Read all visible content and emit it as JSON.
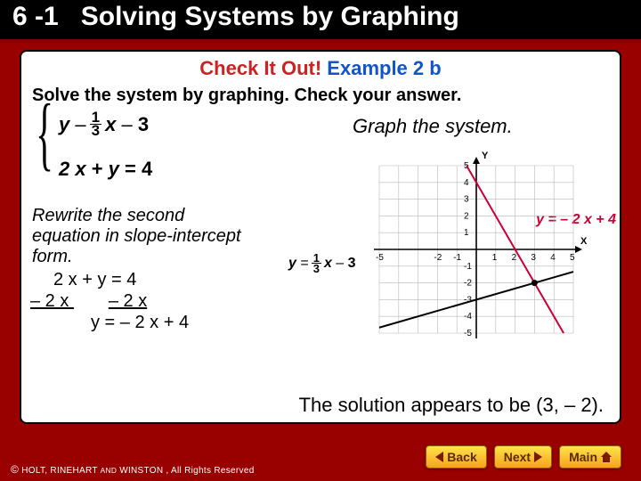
{
  "header": {
    "section": "6 -1",
    "title": "Solving Systems by Graphing"
  },
  "content": {
    "check_label": "Check It Out!",
    "example_label": " Example 2 b",
    "prompt": "Solve the system by graphing. Check your answer.",
    "graph_instruction": "Graph the system.",
    "system": {
      "eq1_y": "y",
      "eq1_minus": "–",
      "eq1_num": "1",
      "eq1_den": "3",
      "eq1_x": "x",
      "eq1_minus2": "–",
      "eq1_c": "3",
      "eq2": "2 x + y = 4"
    },
    "rewrite": {
      "line1": "Rewrite the second",
      "line2": "equation in slope-intercept",
      "line3": "form.",
      "w1": "2 x + y = 4",
      "w2a": "– 2 x ",
      "w2b": "– 2 x",
      "w3": "y = – 2 x + 4"
    },
    "eq_labels": {
      "left_y": "y",
      "left_eq": "=",
      "left_num": "1",
      "left_den": "3",
      "left_x": "x",
      "left_m": "–",
      "left_c": "3",
      "right": "y = – 2 x  + 4"
    },
    "solution": "The solution appears to be (3, – 2).",
    "chart": {
      "xlim": [
        -5,
        5
      ],
      "ylim": [
        -5,
        5
      ],
      "xticks": [
        -5,
        -2,
        -1,
        1,
        2,
        3,
        4,
        5
      ],
      "xlabels": [
        "-5",
        "-2",
        "-1",
        "1",
        "2",
        "3",
        "4",
        "5"
      ],
      "yticks": [
        -5,
        -4,
        -3,
        -2,
        -1,
        1,
        2,
        3,
        4,
        5
      ],
      "ylabels": [
        "-5",
        "-4",
        "-3",
        "-2",
        "-1",
        "1",
        "2",
        "3",
        "4",
        "5"
      ],
      "grid_color": "#b8b8b8",
      "axis_color": "#000000",
      "bg": "#ffffff",
      "lines": [
        {
          "pts": [
            [
              -5,
              -4.667
            ],
            [
              5,
              -1.333
            ]
          ],
          "color": "#000000",
          "width": 2
        },
        {
          "pts": [
            [
              -0.5,
              5
            ],
            [
              4.5,
              -5
            ]
          ],
          "color": "#cc0033",
          "width": 2
        }
      ],
      "intersection": [
        3,
        -2
      ],
      "tick_fontsize": 10,
      "axis_label_x": "X",
      "axis_label_y": "Y"
    }
  },
  "footer": {
    "copyright": "© HOLT, RINEHART AND WINSTON , All Rights Reserved",
    "buttons": {
      "back": "Back",
      "next": "Next",
      "main": "Main"
    }
  }
}
